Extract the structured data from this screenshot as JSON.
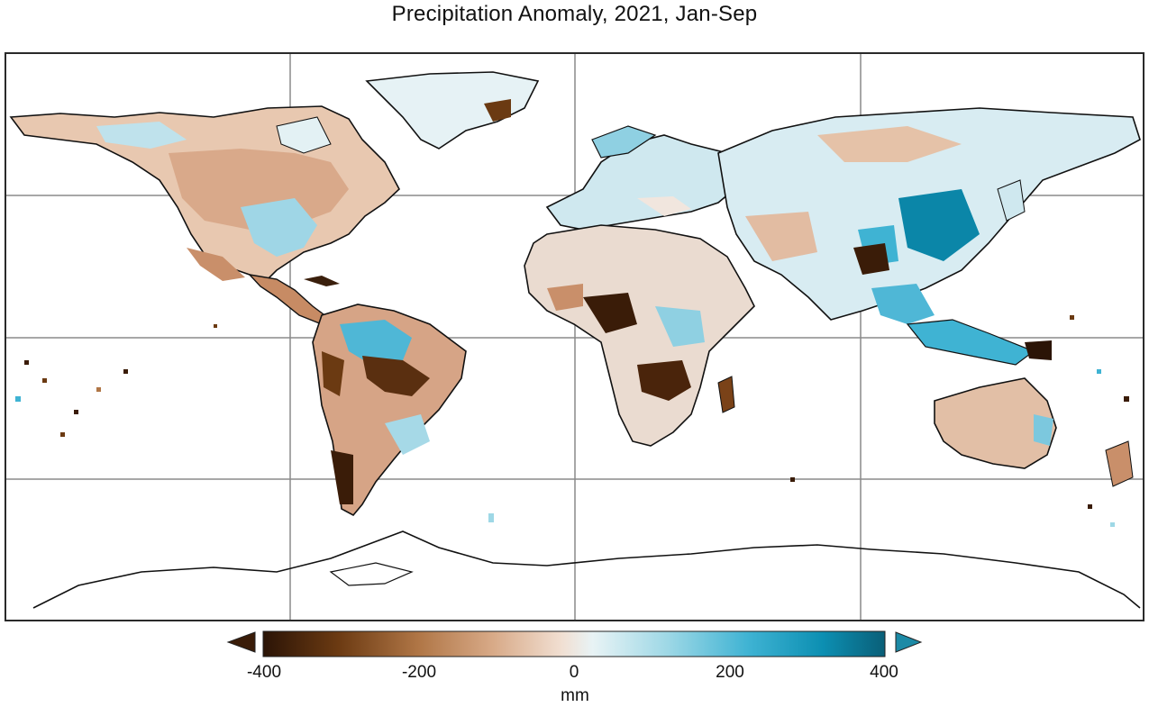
{
  "title": "Precipitation Anomaly, 2021, Jan-Sep",
  "colorbar": {
    "ticks": [
      "-400",
      "-200",
      "0",
      "200",
      "400"
    ],
    "tick_values": [
      -400,
      -200,
      0,
      200,
      400
    ],
    "range": [
      -400,
      400
    ],
    "unit": "mm",
    "extend": "both",
    "stops": [
      "#2b1406",
      "#6b3a12",
      "#b07646",
      "#d8aa88",
      "#f1dfd2",
      "#e8f3f5",
      "#9ed8e6",
      "#3fb3d3",
      "#0c8fb2",
      "#0a5f78"
    ]
  }
}
